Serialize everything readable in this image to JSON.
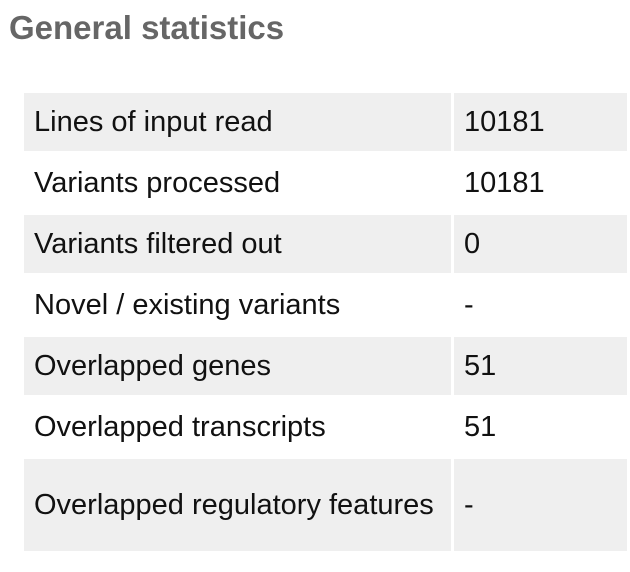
{
  "title": "General statistics",
  "rows": [
    {
      "label": "Lines of input read",
      "value": "10181"
    },
    {
      "label": "Variants processed",
      "value": "10181"
    },
    {
      "label": "Variants filtered out",
      "value": "0"
    },
    {
      "label": "Novel / existing variants",
      "value": "-"
    },
    {
      "label": "Overlapped genes",
      "value": "51"
    },
    {
      "label": "Overlapped transcripts",
      "value": "51"
    },
    {
      "label": "Overlapped regulatory features",
      "value": "-"
    }
  ]
}
